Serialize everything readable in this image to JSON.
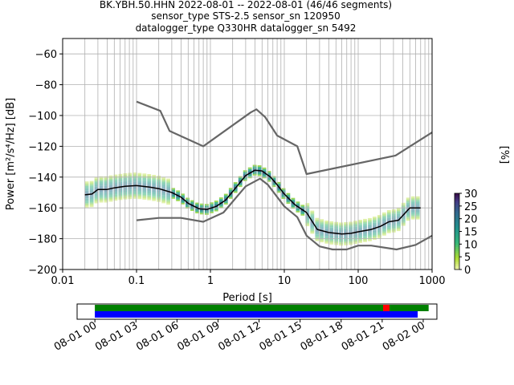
{
  "chart_data": [
    {
      "type": "heatmap",
      "title_lines": [
        "BK.YBH.50.HHN   2022-08-01 -- 2022-08-01  (46/46 segments)",
        "sensor_type STS-2.5 sensor_sn 120950",
        "datalogger_type Q330HR datalogger_sn 5492"
      ],
      "xlabel": "Period [s]",
      "ylabel": "Power [m²/s⁴/Hz] [dB]",
      "xscale": "log",
      "xlim": [
        0.01,
        1000
      ],
      "ylim": [
        -200,
        -50
      ],
      "x_tick_labels": [
        {
          "value": 0.01,
          "label": "0.01"
        },
        {
          "value": 0.1,
          "label": "0.1"
        },
        {
          "value": 1,
          "label": "1"
        },
        {
          "value": 10,
          "label": "10"
        },
        {
          "value": 100,
          "label": "100"
        },
        {
          "value": 1000,
          "label": "1000"
        }
      ],
      "y_tick_labels": [
        {
          "value": -60,
          "label": "−60"
        },
        {
          "value": -80,
          "label": "−80"
        },
        {
          "value": -100,
          "label": "−100"
        },
        {
          "value": -120,
          "label": "−120"
        },
        {
          "value": -140,
          "label": "−140"
        },
        {
          "value": -160,
          "label": "−160"
        },
        {
          "value": -180,
          "label": "−180"
        },
        {
          "value": -200,
          "label": "−200"
        }
      ],
      "grid": true,
      "colorbar": {
        "label": "[%]",
        "range": [
          0,
          30
        ],
        "tick_labels": [
          {
            "value": 0,
            "label": "0"
          },
          {
            "value": 5,
            "label": "5"
          },
          {
            "value": 10,
            "label": "10"
          },
          {
            "value": 15,
            "label": "15"
          },
          {
            "value": 20,
            "label": "20"
          },
          {
            "value": 25,
            "label": "25"
          },
          {
            "value": 30,
            "label": "30"
          }
        ]
      },
      "series": [
        {
          "color": "#666666",
          "points": [
            [
              0.1,
              -91
            ],
            [
              0.21,
              -97
            ],
            [
              0.28,
              -110
            ],
            [
              0.8,
              -120
            ],
            [
              3.5,
              -98
            ],
            [
              4.2,
              -96
            ],
            [
              5.5,
              -101
            ],
            [
              8.0,
              -113
            ],
            [
              15,
              -120
            ],
            [
              20,
              -138
            ],
            [
              320,
              -126
            ],
            [
              1000,
              -111
            ]
          ]
        },
        {
          "color": "#666666",
          "points": [
            [
              0.1,
              -168
            ],
            [
              0.2,
              -166.5
            ],
            [
              0.4,
              -166.5
            ],
            [
              0.8,
              -169
            ],
            [
              1.5,
              -163
            ],
            [
              3.0,
              -146
            ],
            [
              4.7,
              -141
            ],
            [
              6.0,
              -145
            ],
            [
              10,
              -159
            ],
            [
              15,
              -166
            ],
            [
              20,
              -178
            ],
            [
              30,
              -185
            ],
            [
              45,
              -187
            ],
            [
              70,
              -187
            ],
            [
              100,
              -184.5
            ],
            [
              150,
              -184.5
            ],
            [
              330,
              -187
            ],
            [
              600,
              -184
            ],
            [
              1000,
              -178
            ]
          ]
        },
        {
          "color": "#000000",
          "points": [
            [
              0.02,
              -151.5
            ],
            [
              0.025,
              -151
            ],
            [
              0.03,
              -148
            ],
            [
              0.04,
              -148
            ],
            [
              0.05,
              -147
            ],
            [
              0.07,
              -146
            ],
            [
              0.1,
              -145.5
            ],
            [
              0.15,
              -146.5
            ],
            [
              0.2,
              -147.5
            ],
            [
              0.3,
              -150
            ],
            [
              0.4,
              -153
            ],
            [
              0.5,
              -157
            ],
            [
              0.7,
              -160.5
            ],
            [
              0.9,
              -161
            ],
            [
              1.2,
              -159
            ],
            [
              1.6,
              -155
            ],
            [
              2.2,
              -147
            ],
            [
              3.0,
              -139
            ],
            [
              4.0,
              -135.5
            ],
            [
              5.0,
              -136
            ],
            [
              6.5,
              -140
            ],
            [
              8.0,
              -145
            ],
            [
              10,
              -151
            ],
            [
              14,
              -158
            ],
            [
              20,
              -163
            ],
            [
              28,
              -174
            ],
            [
              40,
              -176
            ],
            [
              60,
              -177
            ],
            [
              80,
              -176.5
            ],
            [
              100,
              -175.5
            ],
            [
              150,
              -174
            ],
            [
              200,
              -172
            ],
            [
              260,
              -169
            ],
            [
              350,
              -168
            ],
            [
              500,
              -160
            ],
            [
              700,
              -160
            ]
          ]
        }
      ]
    },
    {
      "type": "timeline",
      "x_tick_labels": [
        "08-01 00",
        "08-01 03",
        "08-01 06",
        "08-01 09",
        "08-01 12",
        "08-01 15",
        "08-01 18",
        "08-01 21",
        "08-02 00"
      ],
      "xlim_hours": [
        -1.3,
        25
      ],
      "bars": [
        {
          "color": "#008000",
          "start_hour": 0,
          "end_hour": 24.4
        },
        {
          "color": "#0000ff",
          "start_hour": 0,
          "end_hour": 23.6
        }
      ],
      "markers": [
        {
          "color": "#ff0000",
          "hour": 21.3
        }
      ]
    }
  ]
}
